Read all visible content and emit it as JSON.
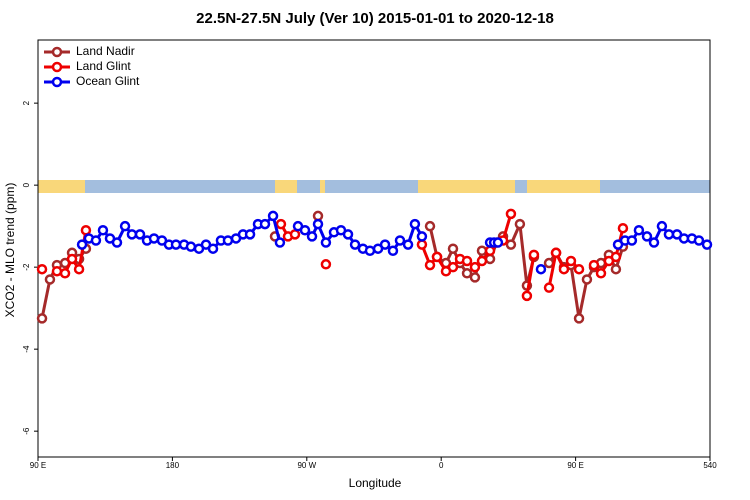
{
  "chart_data": {
    "type": "line",
    "title": "22.5N-27.5N July (Ver 10)   2015-01-01 to 2020-12-18",
    "x_label": "Longitude",
    "y_label": "XCO2 - MLO trend (ppm)",
    "xlim": [
      90,
      540
    ],
    "ylim": [
      -6.63,
      3.54
    ],
    "xticks": [
      {
        "value": 90,
        "label": "90 E"
      },
      180,
      {
        "value": 270,
        "label": "90 W"
      },
      {
        "value": 360,
        "label": "0"
      },
      {
        "value": 450,
        "label": "90 E"
      },
      540
    ],
    "yticks": [
      2,
      0,
      -2,
      -4,
      -6
    ],
    "legend": "top-left",
    "series": [
      {
        "name": "Land Nadir",
        "color": "#a52a2a",
        "x": [
          92.7,
          98.0,
          102.7,
          108.1,
          112.8,
          117.5,
          122.1,
          null,
          248.7,
          null,
          277.5,
          null,
          352.5,
          357.2,
          363.2,
          367.9,
          372.6,
          377.3,
          382.6,
          387.3,
          392.7,
          397.3,
          401.4,
          406.7,
          412.7,
          417.4,
          422.1,
          null,
          432.2,
          436.9,
          442.2,
          446.9,
          452.3,
          457.6,
          462.3,
          467.0,
          472.3,
          477.0,
          481.7
        ],
        "values": [
          -3.25,
          -2.3,
          -1.95,
          -1.9,
          -1.65,
          -1.8,
          -1.55,
          null,
          -1.25,
          null,
          -0.75,
          null,
          -1.0,
          -1.75,
          -1.9,
          -1.55,
          -1.9,
          -2.15,
          -2.25,
          -1.6,
          -1.8,
          -1.4,
          -1.25,
          -1.45,
          -0.95,
          -2.45,
          -1.75,
          null,
          -1.9,
          -1.65,
          -2.0,
          -1.95,
          -3.25,
          -2.3,
          -2.0,
          -1.9,
          -1.7,
          -2.05,
          -1.5
        ]
      },
      {
        "name": "Land Glint",
        "color": "#ee0000",
        "x": [
          92.7,
          null,
          102.7,
          108.1,
          112.8,
          117.5,
          122.1,
          null,
          252.7,
          257.4,
          262.1,
          null,
          282.8,
          null,
          347.1,
          352.5,
          357.2,
          363.2,
          367.9,
          372.6,
          377.3,
          382.6,
          387.3,
          392.7,
          401.4,
          406.7,
          null,
          417.4,
          422.1,
          null,
          432.2,
          436.9,
          442.2,
          446.9,
          452.3,
          null,
          462.3,
          467.0,
          472.3,
          477.0,
          481.7
        ],
        "values": [
          -2.05,
          null,
          -2.1,
          -2.15,
          -1.8,
          -2.05,
          -1.1,
          null,
          -0.95,
          -1.25,
          -1.2,
          null,
          -1.93,
          null,
          -1.45,
          -1.95,
          -1.75,
          -2.1,
          -2.0,
          -1.8,
          -1.85,
          -2.0,
          -1.85,
          -1.6,
          -1.35,
          -0.7,
          null,
          -2.7,
          -1.7,
          null,
          -2.5,
          -1.65,
          -2.05,
          -1.85,
          -2.05,
          null,
          -1.95,
          -2.15,
          -1.85,
          -1.75,
          -1.05
        ]
      },
      {
        "name": "Ocean Glint",
        "color": "#0000ee",
        "x": [
          119.5,
          124.1,
          128.8,
          133.5,
          138.2,
          142.9,
          148.3,
          152.9,
          158.3,
          163.0,
          167.7,
          173.0,
          177.7,
          182.4,
          187.8,
          192.4,
          197.8,
          202.5,
          207.2,
          212.5,
          217.2,
          222.6,
          227.3,
          232.0,
          237.3,
          242.0,
          247.4,
          252.0,
          null,
          264.1,
          268.8,
          273.5,
          277.5,
          282.8,
          288.2,
          292.9,
          297.6,
          302.3,
          307.6,
          312.3,
          317.7,
          322.4,
          327.7,
          332.4,
          337.8,
          342.4,
          347.1,
          null,
          392.7,
          395.4,
          398.0,
          null,
          426.8,
          null,
          478.4,
          483.1,
          487.7,
          492.4,
          497.8,
          502.5,
          507.8,
          512.5,
          517.9,
          522.6,
          527.9,
          532.6,
          538.0
        ],
        "values": [
          -1.45,
          -1.3,
          -1.35,
          -1.1,
          -1.3,
          -1.4,
          -1.0,
          -1.2,
          -1.2,
          -1.35,
          -1.3,
          -1.35,
          -1.45,
          -1.45,
          -1.45,
          -1.5,
          -1.55,
          -1.45,
          -1.55,
          -1.35,
          -1.35,
          -1.3,
          -1.2,
          -1.2,
          -0.95,
          -0.95,
          -0.75,
          -1.4,
          null,
          -1.0,
          -1.1,
          -1.25,
          -0.95,
          -1.4,
          -1.15,
          -1.1,
          -1.2,
          -1.45,
          -1.55,
          -1.6,
          -1.55,
          -1.45,
          -1.6,
          -1.35,
          -1.45,
          -0.95,
          -1.25,
          null,
          -1.4,
          -1.4,
          -1.4,
          null,
          -2.05,
          null,
          -1.45,
          -1.35,
          -1.35,
          -1.1,
          -1.25,
          -1.4,
          -1.0,
          -1.2,
          -1.2,
          -1.3,
          -1.3,
          -1.35,
          -1.45
        ]
      }
    ]
  }
}
